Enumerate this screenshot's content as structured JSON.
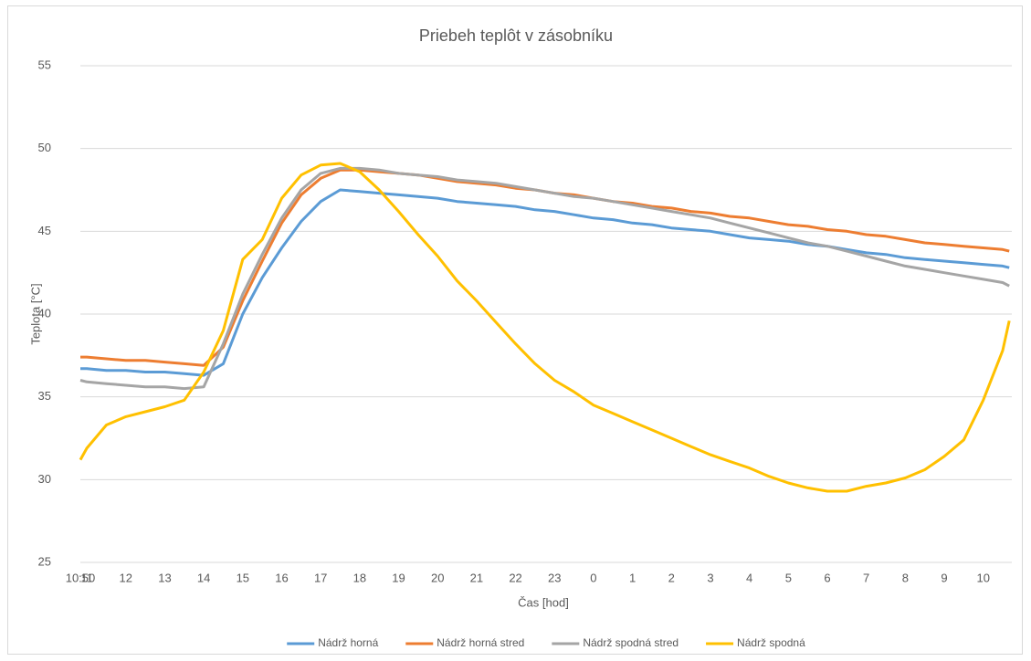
{
  "chart_data": {
    "type": "line",
    "title": "Priebeh teplôt v zásobníku",
    "x_label": "Čas [hod]",
    "y_label": "Teplota [°C]",
    "x": [
      0,
      0.1667,
      0.6667,
      1.1667,
      1.6667,
      2.1667,
      2.6667,
      3.1667,
      3.6667,
      4.1667,
      4.6667,
      5.1667,
      5.6667,
      6.1667,
      6.6667,
      7.1667,
      7.6667,
      8.1667,
      8.6667,
      9.1667,
      9.6667,
      10.1667,
      10.6667,
      11.1667,
      11.6667,
      12.1667,
      12.6667,
      13.1667,
      13.6667,
      14.1667,
      14.6667,
      15.1667,
      15.6667,
      16.1667,
      16.6667,
      17.1667,
      17.6667,
      18.1667,
      18.6667,
      19.1667,
      19.6667,
      20.1667,
      20.6667,
      21.1667,
      21.6667,
      22.1667,
      22.6667,
      23.1667,
      23.6667,
      23.8333
    ],
    "series": [
      {
        "name": "Nádrž horná",
        "color": "#5b9bd5",
        "values": [
          36.7,
          36.7,
          36.6,
          36.6,
          36.5,
          36.5,
          36.4,
          36.3,
          37.0,
          40.0,
          42.2,
          44.0,
          45.6,
          46.8,
          47.5,
          47.4,
          47.3,
          47.2,
          47.1,
          47.0,
          46.8,
          46.7,
          46.6,
          46.5,
          46.3,
          46.2,
          46.0,
          45.8,
          45.7,
          45.5,
          45.4,
          45.2,
          45.1,
          45.0,
          44.8,
          44.6,
          44.5,
          44.4,
          44.2,
          44.1,
          43.9,
          43.7,
          43.6,
          43.4,
          43.3,
          43.2,
          43.1,
          43.0,
          42.9,
          42.8
        ]
      },
      {
        "name": "Nádrž horná stred",
        "color": "#ed7d31",
        "values": [
          37.4,
          37.4,
          37.3,
          37.2,
          37.2,
          37.1,
          37.0,
          36.9,
          38.0,
          40.8,
          43.2,
          45.5,
          47.2,
          48.2,
          48.7,
          48.7,
          48.6,
          48.5,
          48.4,
          48.2,
          48.0,
          47.9,
          47.8,
          47.6,
          47.5,
          47.3,
          47.2,
          47.0,
          46.8,
          46.7,
          46.5,
          46.4,
          46.2,
          46.1,
          45.9,
          45.8,
          45.6,
          45.4,
          45.3,
          45.1,
          45.0,
          44.8,
          44.7,
          44.5,
          44.3,
          44.2,
          44.1,
          44.0,
          43.9,
          43.8
        ]
      },
      {
        "name": "Nádrž spodná stred",
        "color": "#a5a5a5",
        "values": [
          36.0,
          35.9,
          35.8,
          35.7,
          35.6,
          35.6,
          35.5,
          35.6,
          38.2,
          41.2,
          43.6,
          45.8,
          47.5,
          48.5,
          48.8,
          48.8,
          48.7,
          48.5,
          48.4,
          48.3,
          48.1,
          48.0,
          47.9,
          47.7,
          47.5,
          47.3,
          47.1,
          47.0,
          46.8,
          46.6,
          46.4,
          46.2,
          46.0,
          45.8,
          45.5,
          45.2,
          44.9,
          44.6,
          44.3,
          44.1,
          43.8,
          43.5,
          43.2,
          42.9,
          42.7,
          42.5,
          42.3,
          42.1,
          41.9,
          41.7
        ]
      },
      {
        "name": "Nádrž spodná",
        "color": "#ffc000",
        "values": [
          31.2,
          31.9,
          33.3,
          33.8,
          34.1,
          34.4,
          34.8,
          36.5,
          39.0,
          43.3,
          44.5,
          47.0,
          48.4,
          49.0,
          49.1,
          48.6,
          47.5,
          46.2,
          44.8,
          43.5,
          42.0,
          40.8,
          39.5,
          38.2,
          37.0,
          36.0,
          35.3,
          34.5,
          34.0,
          33.5,
          33.0,
          32.5,
          32.0,
          31.5,
          31.1,
          30.7,
          30.2,
          29.8,
          29.5,
          29.3,
          29.3,
          29.6,
          29.8,
          30.1,
          30.6,
          31.4,
          32.4,
          34.8,
          37.8,
          39.6
        ]
      }
    ],
    "xlim": [
      0,
      23.9
    ],
    "xticks": [
      {
        "value": 0,
        "label": "10:50"
      },
      {
        "value": 0.1667,
        "label": "11"
      },
      {
        "value": 1.1667,
        "label": "12"
      },
      {
        "value": 2.1667,
        "label": "13"
      },
      {
        "value": 3.1667,
        "label": "14"
      },
      {
        "value": 4.1667,
        "label": "15"
      },
      {
        "value": 5.1667,
        "label": "16"
      },
      {
        "value": 6.1667,
        "label": "17"
      },
      {
        "value": 7.1667,
        "label": "18"
      },
      {
        "value": 8.1667,
        "label": "19"
      },
      {
        "value": 9.1667,
        "label": "20"
      },
      {
        "value": 10.1667,
        "label": "21"
      },
      {
        "value": 11.1667,
        "label": "22"
      },
      {
        "value": 12.1667,
        "label": "23"
      },
      {
        "value": 13.1667,
        "label": "0"
      },
      {
        "value": 14.1667,
        "label": "1"
      },
      {
        "value": 15.1667,
        "label": "2"
      },
      {
        "value": 16.1667,
        "label": "3"
      },
      {
        "value": 17.1667,
        "label": "4"
      },
      {
        "value": 18.1667,
        "label": "5"
      },
      {
        "value": 19.1667,
        "label": "6"
      },
      {
        "value": 20.1667,
        "label": "7"
      },
      {
        "value": 21.1667,
        "label": "8"
      },
      {
        "value": 22.1667,
        "label": "9"
      },
      {
        "value": 23.1667,
        "label": "10"
      }
    ],
    "ylim": [
      25,
      55
    ],
    "yticks": [
      25,
      30,
      35,
      40,
      45,
      50,
      55
    ],
    "grid": true,
    "legend": "bottom"
  }
}
